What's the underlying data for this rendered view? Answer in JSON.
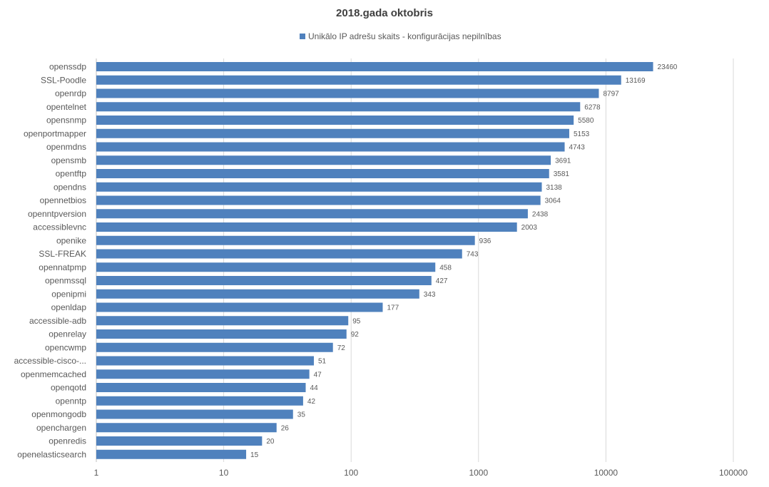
{
  "chart_data": {
    "type": "bar",
    "orientation": "horizontal",
    "title": "2018.gada oktobris",
    "xscale": "log",
    "xlim": [
      1,
      100000
    ],
    "x_ticks": [
      "1",
      "10",
      "100",
      "1000",
      "10000",
      "100000"
    ],
    "grid": true,
    "legend": "top-center",
    "series": [
      {
        "name": "Unikālo IP adrešu skaits  -  konfigurācijas nepilnības",
        "color": "#4f81bd",
        "values": [
          23460,
          13169,
          8797,
          6278,
          5580,
          5153,
          4743,
          3691,
          3581,
          3138,
          3064,
          2438,
          2003,
          936,
          743,
          458,
          427,
          343,
          177,
          95,
          92,
          72,
          51,
          47,
          44,
          42,
          35,
          26,
          20,
          15
        ]
      }
    ],
    "categories": [
      "openssdp",
      "SSL-Poodle",
      "openrdp",
      "opentelnet",
      "opensnmp",
      "openportmapper",
      "openmdns",
      "opensmb",
      "opentftp",
      "opendns",
      "opennetbios",
      "openntpversion",
      "accessiblevnc",
      "openike",
      "SSL-FREAK",
      "opennatpmp",
      "openmssql",
      "openipmi",
      "openldap",
      "accessible-adb",
      "openrelay",
      "opencwmp",
      "accessible-cisco-...",
      "openmemcached",
      "openqotd",
      "openntp",
      "openmongodb",
      "openchargen",
      "openredis",
      "openelasticsearch"
    ]
  }
}
